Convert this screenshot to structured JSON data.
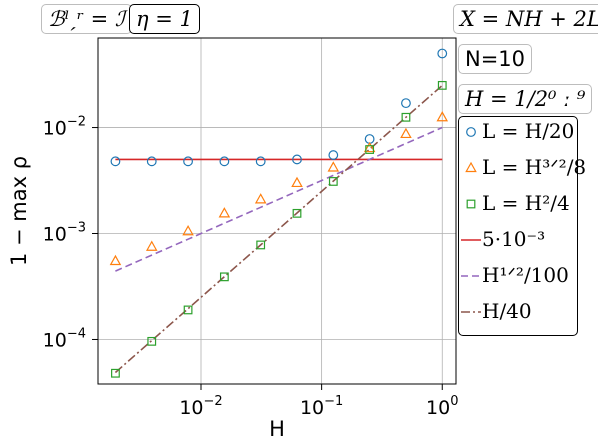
{
  "tags": {
    "boundary": "ℬˡˏʳ = ℐ",
    "eta": "η = 1",
    "x_def": "X = NH + 2L",
    "n_val": "N=10",
    "h_def": "H = 1/2⁰ ː ⁹"
  },
  "chart_data": {
    "type": "scatter",
    "xlabel": "H",
    "ylabel": "1 − max ρ",
    "xscale": "log",
    "yscale": "log",
    "xlim": [
      0.0014,
      1.3
    ],
    "ylim": [
      3.8e-05,
      0.07
    ],
    "grid": true,
    "legend_position": "right",
    "x_ticks": [
      {
        "value": 0.01,
        "base": "10",
        "exp": "−2"
      },
      {
        "value": 0.1,
        "base": "10",
        "exp": "−1"
      },
      {
        "value": 1,
        "base": "10",
        "exp": "0"
      }
    ],
    "y_ticks": [
      {
        "value": 0.0001,
        "base": "10",
        "exp": "−4"
      },
      {
        "value": 0.001,
        "base": "10",
        "exp": "−3"
      },
      {
        "value": 0.01,
        "base": "10",
        "exp": "−2"
      }
    ],
    "x": [
      0.001953,
      0.003906,
      0.007813,
      0.015625,
      0.03125,
      0.0625,
      0.125,
      0.25,
      0.5,
      1
    ],
    "series": [
      {
        "name": "L = H/20",
        "kind": "marker",
        "marker": "circle",
        "color": "#1f77b4",
        "values": [
          0.0048,
          0.0048,
          0.0048,
          0.0048,
          0.0048,
          0.005,
          0.0055,
          0.0078,
          0.017,
          0.05
        ]
      },
      {
        "name": "L = H³ᐟ²/8",
        "kind": "marker",
        "marker": "triangle",
        "color": "#ff7f0e",
        "values": [
          0.00055,
          0.00075,
          0.00105,
          0.00155,
          0.0021,
          0.003,
          0.0042,
          0.0064,
          0.0087,
          0.0125
        ]
      },
      {
        "name": "L = H²/4",
        "kind": "marker",
        "marker": "square",
        "color": "#2ca02c",
        "values": [
          4.8e-05,
          9.6e-05,
          0.00019,
          0.00039,
          0.00078,
          0.00155,
          0.0031,
          0.0062,
          0.0125,
          0.025
        ]
      },
      {
        "name": "5·10⁻³",
        "kind": "line",
        "dash": "solid",
        "color": "#d62728",
        "values": [
          0.005,
          0.005,
          0.005,
          0.005,
          0.005,
          0.005,
          0.005,
          0.005,
          0.005,
          0.005
        ]
      },
      {
        "name": "H¹ᐟ²/100",
        "kind": "line",
        "dash": "dashed",
        "color": "#9467bd",
        "values": [
          0.000442,
          0.000625,
          0.000884,
          0.00125,
          0.001768,
          0.0025,
          0.003536,
          0.005,
          0.007071,
          0.01
        ]
      },
      {
        "name": "H/40",
        "kind": "line",
        "dash": "dashdot",
        "color": "#8c564b",
        "values": [
          4.88e-05,
          9.77e-05,
          0.000195,
          0.000391,
          0.000781,
          0.00156,
          0.003125,
          0.00625,
          0.0125,
          0.025
        ]
      }
    ]
  }
}
